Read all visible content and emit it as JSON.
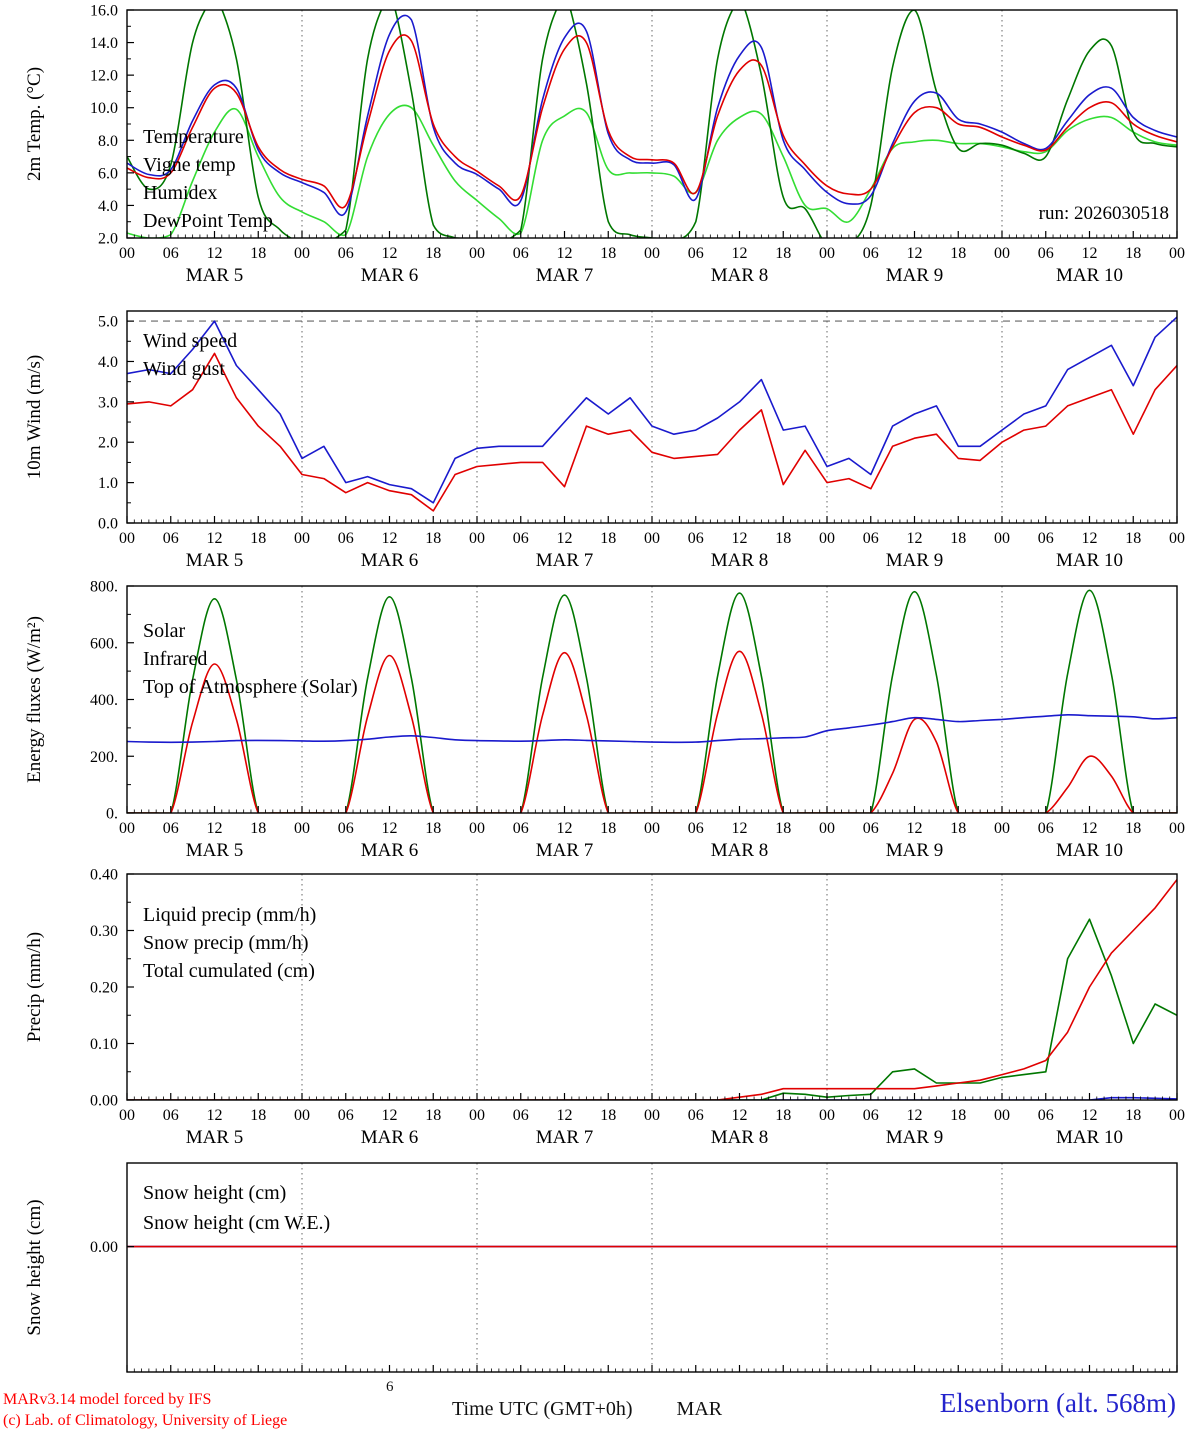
{
  "footer": {
    "credit_line1": "MARv3.14 model forced by IFS",
    "credit_line2": "(c) Lab. of Climatology, University of Liege",
    "axis_title": "Time UTC (GMT+0h)",
    "month_label": "MAR",
    "station_label": "Elsenborn (alt. 568m)",
    "stray_digit": "6"
  },
  "chart_data": {
    "type": "line",
    "x_hours_step": 3,
    "x_range_hours": [
      0,
      144
    ],
    "xtick_labels": [
      "00",
      "06",
      "12",
      "18",
      "00",
      "06",
      "12",
      "18",
      "00",
      "06",
      "12",
      "18",
      "00",
      "06",
      "12",
      "18",
      "00",
      "06",
      "12",
      "18",
      "00",
      "06",
      "12",
      "18",
      "00"
    ],
    "day_labels": [
      "MAR 5",
      "MAR 6",
      "MAR 7",
      "MAR 8",
      "MAR 9",
      "MAR 10"
    ],
    "panels": [
      {
        "name": "temp2m",
        "ylabel": "2m Temp. (°C)",
        "ylim": [
          2,
          16
        ],
        "yticks": [
          2,
          4,
          6,
          8,
          10,
          12,
          14,
          16
        ],
        "ytick_labels": [
          "2.0",
          "4.0",
          "6.0",
          "8.0",
          "10.0",
          "12.0",
          "14.0",
          "16.0"
        ],
        "yminor": 1,
        "hline": null,
        "annotation": "run: 2026030518",
        "legend": [
          {
            "label": "Temperature",
            "color": "#e00000"
          },
          {
            "label": "Vigne temp",
            "color": "#007700"
          },
          {
            "label": "Humidex",
            "color": "#1a1acd"
          },
          {
            "label": "DewPoint Temp",
            "color": "#33dd33"
          }
        ],
        "series": [
          {
            "name": "dewpoint-temp",
            "color": "#33dd33",
            "smooth": true,
            "values": [
              2.3,
              2.0,
              2.2,
              5.5,
              8.5,
              9.9,
              7.0,
              4.5,
              3.6,
              3.0,
              2.2,
              7.0,
              9.6,
              10.0,
              7.7,
              5.5,
              4.3,
              3.2,
              2.3,
              8.0,
              9.5,
              9.7,
              6.2,
              6.0,
              6.0,
              5.8,
              4.8,
              8.0,
              9.4,
              9.6,
              7.0,
              4.0,
              3.8,
              3.0,
              5.0,
              7.5,
              7.9,
              8.0,
              7.8,
              7.8,
              7.6,
              7.3,
              7.3,
              8.6,
              9.3,
              9.4,
              8.5,
              7.9,
              7.7
            ]
          },
          {
            "name": "vigne-temp",
            "color": "#007700",
            "smooth": true,
            "values": [
              7.0,
              5.0,
              6.5,
              14.0,
              17.2,
              13.0,
              4.5,
              2.5,
              1.5,
              1.4,
              2.5,
              13.0,
              17.2,
              11.0,
              2.8,
              2.0,
              1.5,
              1.4,
              2.5,
              13.0,
              17.2,
              11.5,
              3.0,
              2.2,
              2.0,
              1.8,
              3.0,
              13.0,
              16.8,
              12.0,
              4.5,
              3.8,
              1.5,
              1.5,
              4.0,
              12.5,
              16.0,
              11.0,
              7.5,
              7.8,
              7.7,
              7.2,
              7.0,
              10.5,
              13.5,
              13.8,
              8.5,
              7.8,
              7.6
            ]
          },
          {
            "name": "humidex",
            "color": "#1a1acd",
            "smooth": true,
            "values": [
              6.6,
              5.9,
              6.2,
              9.2,
              11.4,
              11.2,
              7.4,
              6.0,
              5.4,
              4.8,
              3.6,
              9.5,
              14.5,
              15.4,
              8.8,
              6.6,
              5.9,
              5.0,
              4.3,
              10.5,
              14.3,
              14.7,
              8.4,
              6.8,
              6.6,
              6.5,
              4.4,
              10.0,
              13.2,
              13.7,
              8.0,
              6.2,
              4.8,
              4.1,
              4.6,
              7.8,
              10.4,
              10.9,
              9.3,
              9.0,
              8.5,
              7.8,
              7.5,
              9.2,
              10.8,
              11.2,
              9.4,
              8.6,
              8.2
            ]
          },
          {
            "name": "temperature",
            "color": "#e00000",
            "smooth": true,
            "values": [
              6.3,
              5.7,
              6.0,
              8.8,
              11.2,
              10.9,
              7.6,
              6.2,
              5.6,
              5.2,
              4.0,
              9.0,
              13.5,
              14.1,
              9.0,
              7.0,
              6.1,
              5.2,
              4.6,
              10.0,
              13.6,
              14.0,
              8.6,
              7.0,
              6.8,
              6.6,
              4.8,
              9.5,
              12.3,
              12.6,
              8.3,
              6.5,
              5.2,
              4.7,
              5.0,
              7.6,
              9.7,
              10.0,
              9.0,
              8.8,
              8.2,
              7.7,
              7.4,
              8.8,
              10.0,
              10.3,
              9.0,
              8.3,
              7.9
            ]
          }
        ]
      },
      {
        "name": "wind10m",
        "ylabel": "10m Wind (m/s)",
        "ylim": [
          0,
          5.25
        ],
        "yticks": [
          0,
          1,
          2,
          3,
          4,
          5
        ],
        "ytick_labels": [
          "0.0",
          "1.0",
          "2.0",
          "3.0",
          "4.0",
          "5.0"
        ],
        "yminor": 0.5,
        "hline": 5,
        "annotation": null,
        "legend": [
          {
            "label": "Wind speed",
            "color": "#e00000"
          },
          {
            "label": "Wind gust",
            "color": "#1a1acd"
          }
        ],
        "series": [
          {
            "name": "wind-gust",
            "color": "#1a1acd",
            "smooth": false,
            "values": [
              3.7,
              3.8,
              3.7,
              4.3,
              5.0,
              3.9,
              3.3,
              2.7,
              1.6,
              1.9,
              1.0,
              1.15,
              0.95,
              0.85,
              0.5,
              1.6,
              1.85,
              1.9,
              1.9,
              1.9,
              2.5,
              3.1,
              2.7,
              3.1,
              2.4,
              2.2,
              2.3,
              2.6,
              3.0,
              3.55,
              2.3,
              2.4,
              1.4,
              1.6,
              1.2,
              2.4,
              2.7,
              2.9,
              1.9,
              1.9,
              2.3,
              2.7,
              2.9,
              3.8,
              4.1,
              4.4,
              3.4,
              4.6,
              5.1
            ]
          },
          {
            "name": "wind-speed",
            "color": "#e00000",
            "smooth": false,
            "values": [
              2.95,
              3.0,
              2.9,
              3.3,
              4.2,
              3.1,
              2.4,
              1.9,
              1.2,
              1.1,
              0.75,
              1.0,
              0.8,
              0.7,
              0.3,
              1.2,
              1.4,
              1.45,
              1.5,
              1.5,
              0.9,
              2.4,
              2.2,
              2.3,
              1.75,
              1.6,
              1.65,
              1.7,
              2.3,
              2.8,
              0.95,
              1.8,
              1.0,
              1.1,
              0.85,
              1.9,
              2.1,
              2.2,
              1.6,
              1.55,
              2.0,
              2.3,
              2.4,
              2.9,
              3.1,
              3.3,
              2.2,
              3.3,
              3.9
            ]
          }
        ]
      },
      {
        "name": "energy-fluxes",
        "ylabel": "Energy fluxes (W/m²)",
        "ylim": [
          0,
          800
        ],
        "yticks": [
          0,
          200,
          400,
          600,
          800
        ],
        "ytick_labels": [
          "0.",
          "200.",
          "400.",
          "600.",
          "800."
        ],
        "yminor": 100,
        "hline": null,
        "annotation": null,
        "legend": [
          {
            "label": "Solar",
            "color": "#e00000"
          },
          {
            "label": "Infrared",
            "color": "#1a1acd"
          },
          {
            "label": "Top of Atmosphere (Solar)",
            "color": "#007700"
          }
        ],
        "series": [
          {
            "name": "toa-solar",
            "color": "#007700",
            "smooth": true,
            "values": [
              0,
              0,
              0,
              470,
              755,
              470,
              0,
              0,
              0,
              0,
              0,
              475,
              762,
              475,
              0,
              0,
              0,
              0,
              0,
              478,
              768,
              478,
              0,
              0,
              0,
              0,
              0,
              482,
              775,
              482,
              0,
              0,
              0,
              0,
              0,
              486,
              780,
              486,
              0,
              0,
              0,
              0,
              0,
              490,
              785,
              490,
              0,
              0,
              0
            ]
          },
          {
            "name": "solar",
            "color": "#e00000",
            "smooth": true,
            "values": [
              0,
              0,
              0,
              320,
              525,
              330,
              0,
              0,
              0,
              0,
              0,
              340,
              555,
              340,
              0,
              0,
              0,
              0,
              0,
              345,
              565,
              345,
              0,
              0,
              0,
              0,
              0,
              350,
              570,
              350,
              0,
              0,
              0,
              0,
              0,
              140,
              330,
              250,
              0,
              0,
              0,
              0,
              0,
              90,
              200,
              130,
              0,
              0,
              0
            ]
          },
          {
            "name": "infrared",
            "color": "#1a1acd",
            "smooth": true,
            "values": [
              252,
              250,
              249,
              250,
              252,
              255,
              256,
              255,
              254,
              253,
              255,
              260,
              268,
              272,
              266,
              258,
              255,
              254,
              253,
              255,
              258,
              256,
              254,
              252,
              250,
              249,
              250,
              255,
              260,
              262,
              265,
              268,
              290,
              300,
              310,
              322,
              336,
              330,
              322,
              326,
              330,
              336,
              341,
              346,
              343,
              341,
              339,
              332,
              336
            ]
          }
        ]
      },
      {
        "name": "precip",
        "ylabel": "Precip (mm/h)",
        "ylim": [
          0,
          0.4
        ],
        "yticks": [
          0,
          0.1,
          0.2,
          0.3,
          0.4
        ],
        "ytick_labels": [
          "0.00",
          "0.10",
          "0.20",
          "0.30",
          "0.40"
        ],
        "yminor": 0.05,
        "hline": null,
        "annotation": null,
        "legend": [
          {
            "label": "Liquid precip (mm/h)",
            "color": "#007700"
          },
          {
            "label": "Snow precip (mm/h)",
            "color": "#1a1acd"
          },
          {
            "label": "Total cumulated (cm)",
            "color": "#e00000"
          }
        ],
        "series": [
          {
            "name": "snow-precip",
            "color": "#1a1acd",
            "smooth": false,
            "values": [
              0,
              0,
              0,
              0,
              0,
              0,
              0,
              0,
              0,
              0,
              0,
              0,
              0,
              0,
              0,
              0,
              0,
              0,
              0,
              0,
              0,
              0,
              0,
              0,
              0,
              0,
              0,
              0,
              0,
              0,
              0,
              0,
              0,
              0,
              0,
              0,
              0,
              0,
              0,
              0,
              0,
              0,
              0,
              0,
              0,
              0.004,
              0.004,
              0.003,
              0.002
            ]
          },
          {
            "name": "liquid-precip",
            "color": "#007700",
            "smooth": false,
            "values": [
              0,
              0,
              0,
              0,
              0,
              0,
              0,
              0,
              0,
              0,
              0,
              0,
              0,
              0,
              0,
              0,
              0,
              0,
              0,
              0,
              0,
              0,
              0,
              0,
              0,
              0,
              0,
              0,
              0,
              0,
              0.012,
              0.01,
              0.005,
              0.008,
              0.01,
              0.05,
              0.055,
              0.03,
              0.03,
              0.03,
              0.04,
              0.045,
              0.05,
              0.25,
              0.32,
              0.22,
              0.1,
              0.17,
              0.15
            ]
          },
          {
            "name": "total-cumulated",
            "color": "#e00000",
            "smooth": false,
            "values": [
              0,
              0,
              0,
              0,
              0,
              0,
              0,
              0,
              0,
              0,
              0,
              0,
              0,
              0,
              0,
              0,
              0,
              0,
              0,
              0,
              0,
              0,
              0,
              0,
              0,
              0,
              0,
              0,
              0.005,
              0.01,
              0.02,
              0.02,
              0.02,
              0.02,
              0.02,
              0.02,
              0.02,
              0.025,
              0.03,
              0.035,
              0.045,
              0.055,
              0.07,
              0.12,
              0.2,
              0.26,
              0.3,
              0.34,
              0.39
            ]
          }
        ]
      },
      {
        "name": "snow-height",
        "ylabel": "Snow height (cm)",
        "ylim": [
          -1.05,
          0.7
        ],
        "yticks": [
          0
        ],
        "ytick_labels": [
          "0.00"
        ],
        "yminor": null,
        "hline": null,
        "annotation": null,
        "show_x_labels": false,
        "legend": [
          {
            "label": "Snow height (cm)",
            "color": "#e00000"
          },
          {
            "label": "Snow height (cm W.E.)",
            "color": "#1a1acd"
          }
        ],
        "series": [
          {
            "name": "snow-height-we",
            "color": "#1a1acd",
            "smooth": false,
            "x": [
              0,
              144
            ],
            "values": [
              0,
              0
            ]
          },
          {
            "name": "snow-height",
            "color": "#e00000",
            "smooth": false,
            "x": [
              0,
              144
            ],
            "values": [
              0,
              0
            ]
          }
        ]
      }
    ]
  }
}
